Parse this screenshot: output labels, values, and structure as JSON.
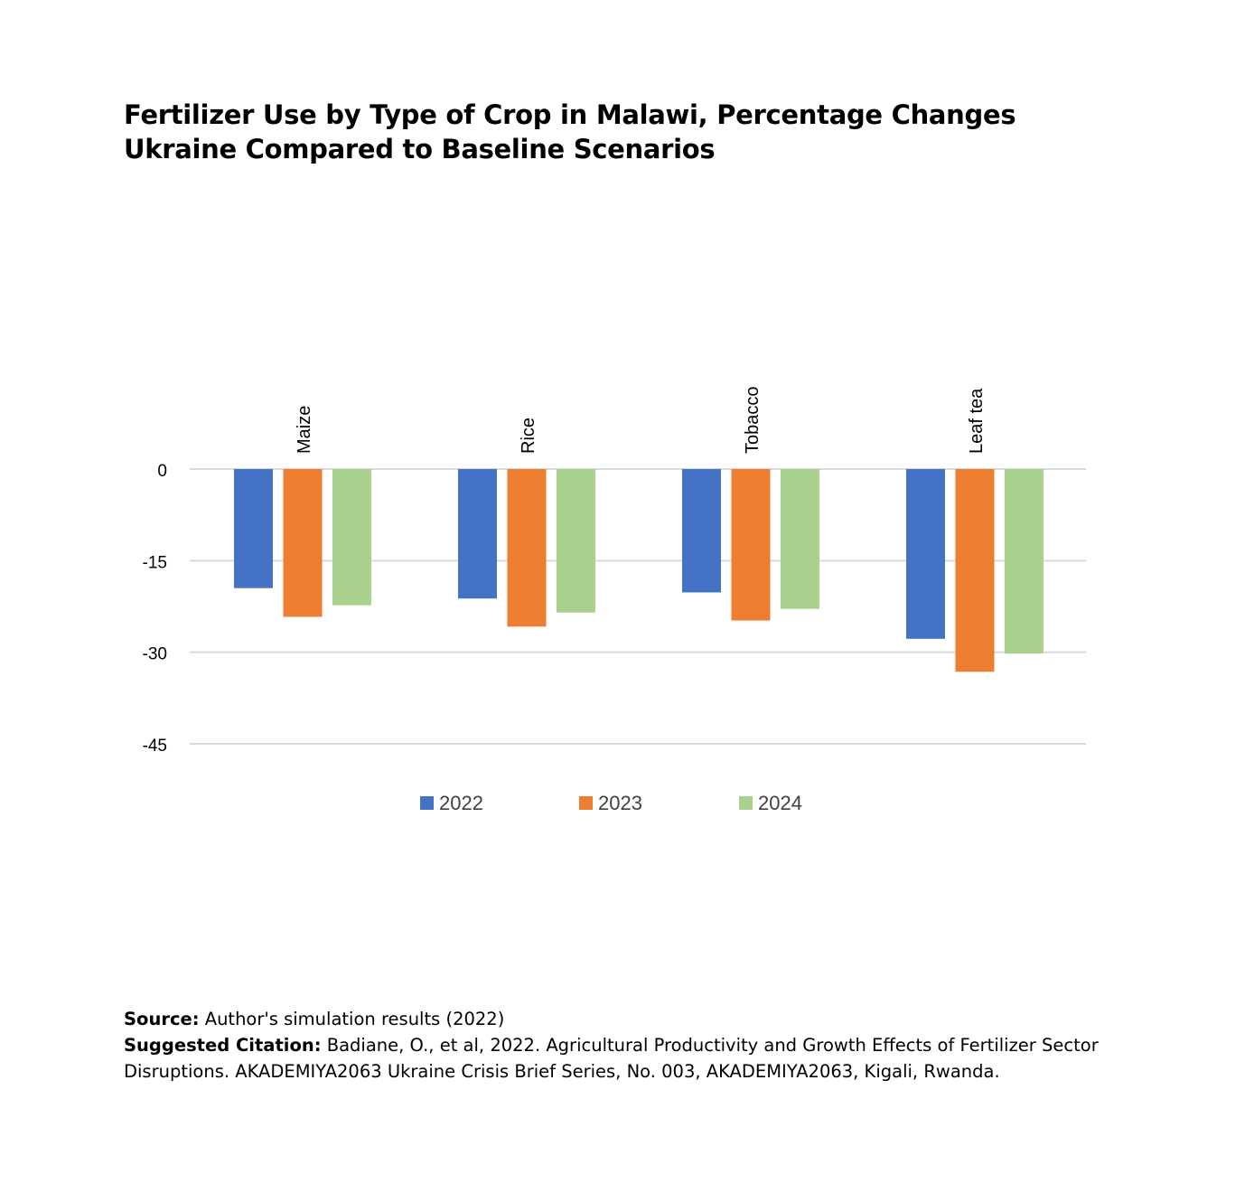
{
  "title": {
    "line1": "Fertilizer Use by Type of Crop in Malawi, Percentage Changes",
    "line2": "Ukraine Compared to Baseline Scenarios"
  },
  "footer": {
    "source_label": "Source:",
    "source_text": " Author's simulation results (2022)",
    "citation_label": "Suggested Citation:",
    "citation_text_1": " Badiane, O., et al, 2022. Agricultural Productivity and Growth Effects of Fertilizer Sector",
    "citation_text_2": "Disruptions. AKADEMIYA2063 Ukraine Crisis Brief Series, No. 003, AKADEMIYA2063, Kigali, Rwanda."
  },
  "chart_data": {
    "type": "bar",
    "categories": [
      "Maize",
      "Rice",
      "Tobacco",
      "Leaf tea"
    ],
    "series": [
      {
        "name": "2022",
        "color": "#4472C4",
        "values": [
          -19.5,
          -21.2,
          -20.2,
          -27.8
        ]
      },
      {
        "name": "2023",
        "color": "#ED7D31",
        "values": [
          -24.2,
          -25.8,
          -24.8,
          -33.2
        ]
      },
      {
        "name": "2024",
        "color": "#A9D18E",
        "values": [
          -22.3,
          -23.5,
          -22.9,
          -30.2
        ]
      }
    ],
    "yticks": [
      0,
      -15,
      -30,
      -45
    ],
    "ylim": [
      -45,
      0
    ],
    "grid": true,
    "legend": "bottom",
    "category_label_position": "top-rotated"
  }
}
